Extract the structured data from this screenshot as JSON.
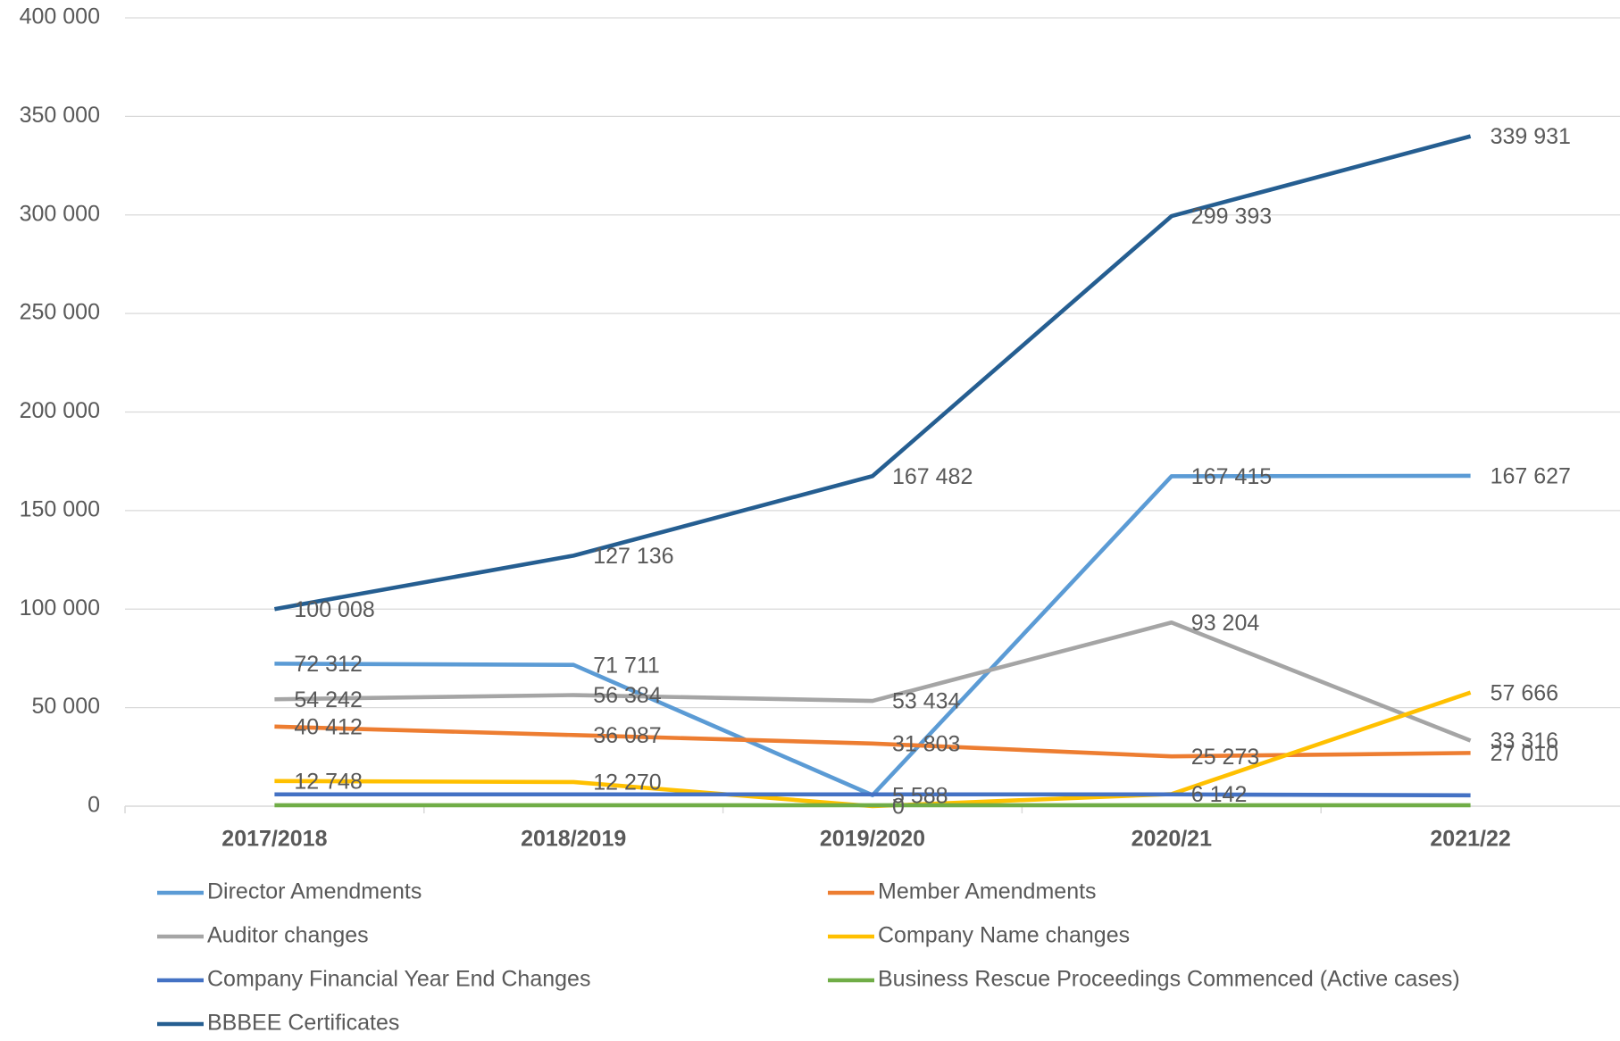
{
  "chart_data": {
    "type": "line",
    "categories": [
      "2017/2018",
      "2018/2019",
      "2019/2020",
      "2020/21",
      "2021/22"
    ],
    "ylim": [
      0,
      400000
    ],
    "yticks": [
      {
        "value": 0,
        "label": "0"
      },
      {
        "value": 50000,
        "label": "50 000"
      },
      {
        "value": 100000,
        "label": "100 000"
      },
      {
        "value": 150000,
        "label": "150 000"
      },
      {
        "value": 200000,
        "label": "200 000"
      },
      {
        "value": 250000,
        "label": "250 000"
      },
      {
        "value": 300000,
        "label": "300 000"
      },
      {
        "value": 350000,
        "label": "350 000"
      },
      {
        "value": 400000,
        "label": "400 000"
      }
    ],
    "grid": true,
    "legend": "bottom",
    "series": [
      {
        "name": "Director Amendments",
        "color": "#5b9bd5",
        "values": [
          72312,
          71711,
          5588,
          167415,
          167627
        ],
        "value_labels": [
          "72 312",
          "71 711",
          "5 588",
          "167 415",
          "167 627"
        ]
      },
      {
        "name": "Member Amendments",
        "color": "#ed7d31",
        "values": [
          40412,
          36087,
          31803,
          25273,
          27010
        ],
        "value_labels": [
          "40 412",
          "36 087",
          "31 803",
          "25 273",
          "27 010"
        ]
      },
      {
        "name": "Auditor changes",
        "color": "#a5a5a5",
        "values": [
          54242,
          56384,
          53434,
          93204,
          33316
        ],
        "value_labels": [
          "54 242",
          "56 384",
          "53 434",
          "93 204",
          "33 316"
        ]
      },
      {
        "name": "Company Name changes",
        "color": "#ffc000",
        "values": [
          12748,
          12270,
          0,
          6142,
          57666
        ],
        "value_labels": [
          "12 748",
          "12 270",
          "0",
          "6 142",
          "57 666"
        ]
      },
      {
        "name": "Company Financial Year End Changes",
        "color": "#4472c4",
        "values": [
          6000,
          6000,
          6000,
          6000,
          5500
        ]
      },
      {
        "name": "Business Rescue Proceedings Commenced (Active cases)",
        "color": "#70ad47",
        "values": [
          500,
          500,
          500,
          500,
          500
        ]
      },
      {
        "name": "BBBEE Certificates",
        "color": "#255e91",
        "values": [
          100008,
          127136,
          167482,
          299393,
          339931
        ],
        "value_labels": [
          "100 008",
          "127 136",
          "167 482",
          "299 393",
          "339 931"
        ]
      }
    ]
  }
}
